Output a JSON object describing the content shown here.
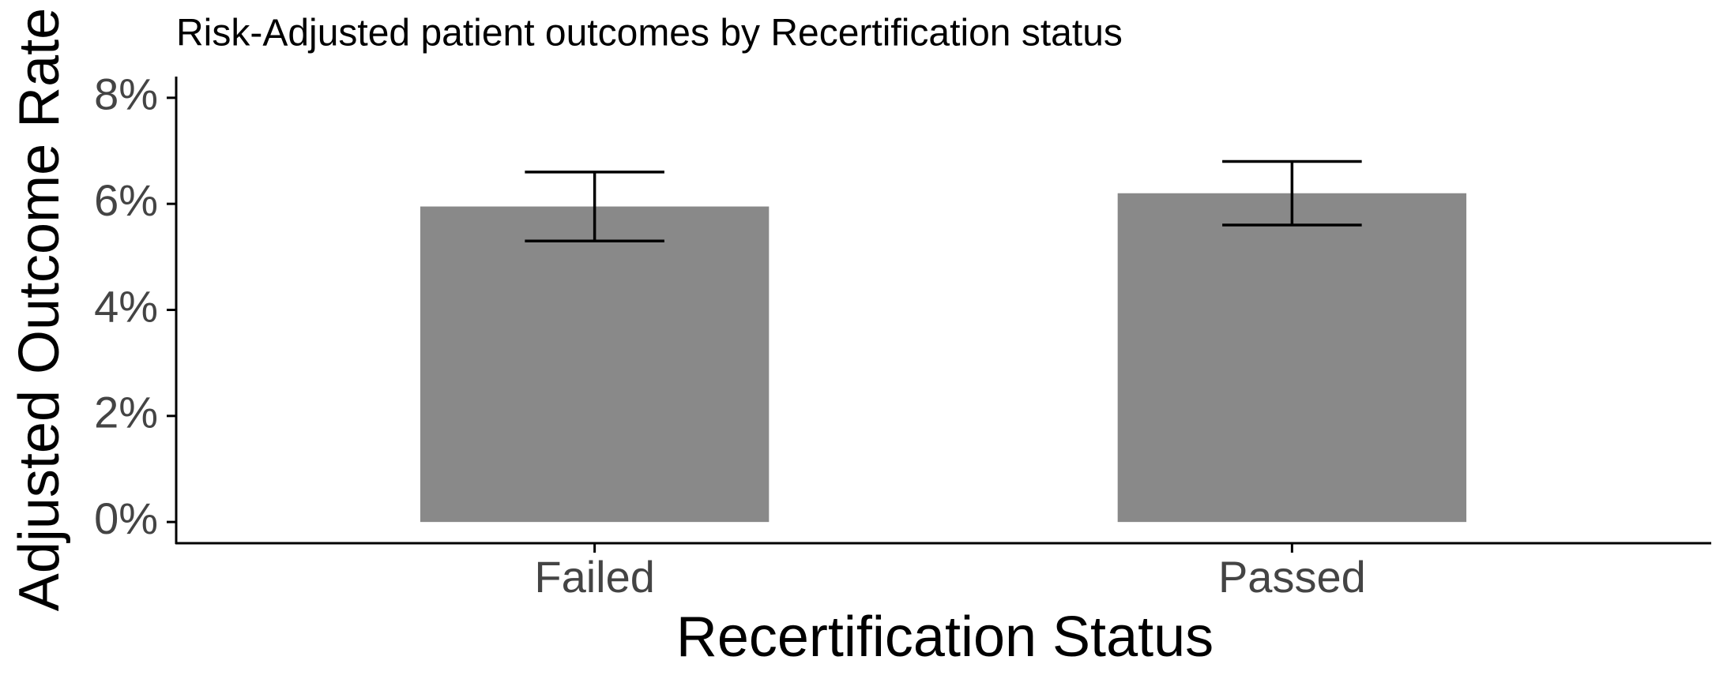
{
  "chart_data": {
    "type": "bar",
    "title": "Risk-Adjusted patient outcomes by Recertification status",
    "x_label": "Recertification Status",
    "y_label": "Adjusted Outcome Rate",
    "categories": [
      "Failed",
      "Passed"
    ],
    "values": [
      5.95,
      6.2
    ],
    "errors": [
      0.65,
      0.6
    ],
    "color": "#898989",
    "error_color": "#000000",
    "ylim": [
      -0.4,
      8.4
    ],
    "yticks": [
      {
        "value": 0,
        "label": "0%"
      },
      {
        "value": 2,
        "label": "2%"
      },
      {
        "value": 4,
        "label": "4%"
      },
      {
        "value": 6,
        "label": "6%"
      },
      {
        "value": 8,
        "label": "8%"
      }
    ],
    "grid": false
  }
}
